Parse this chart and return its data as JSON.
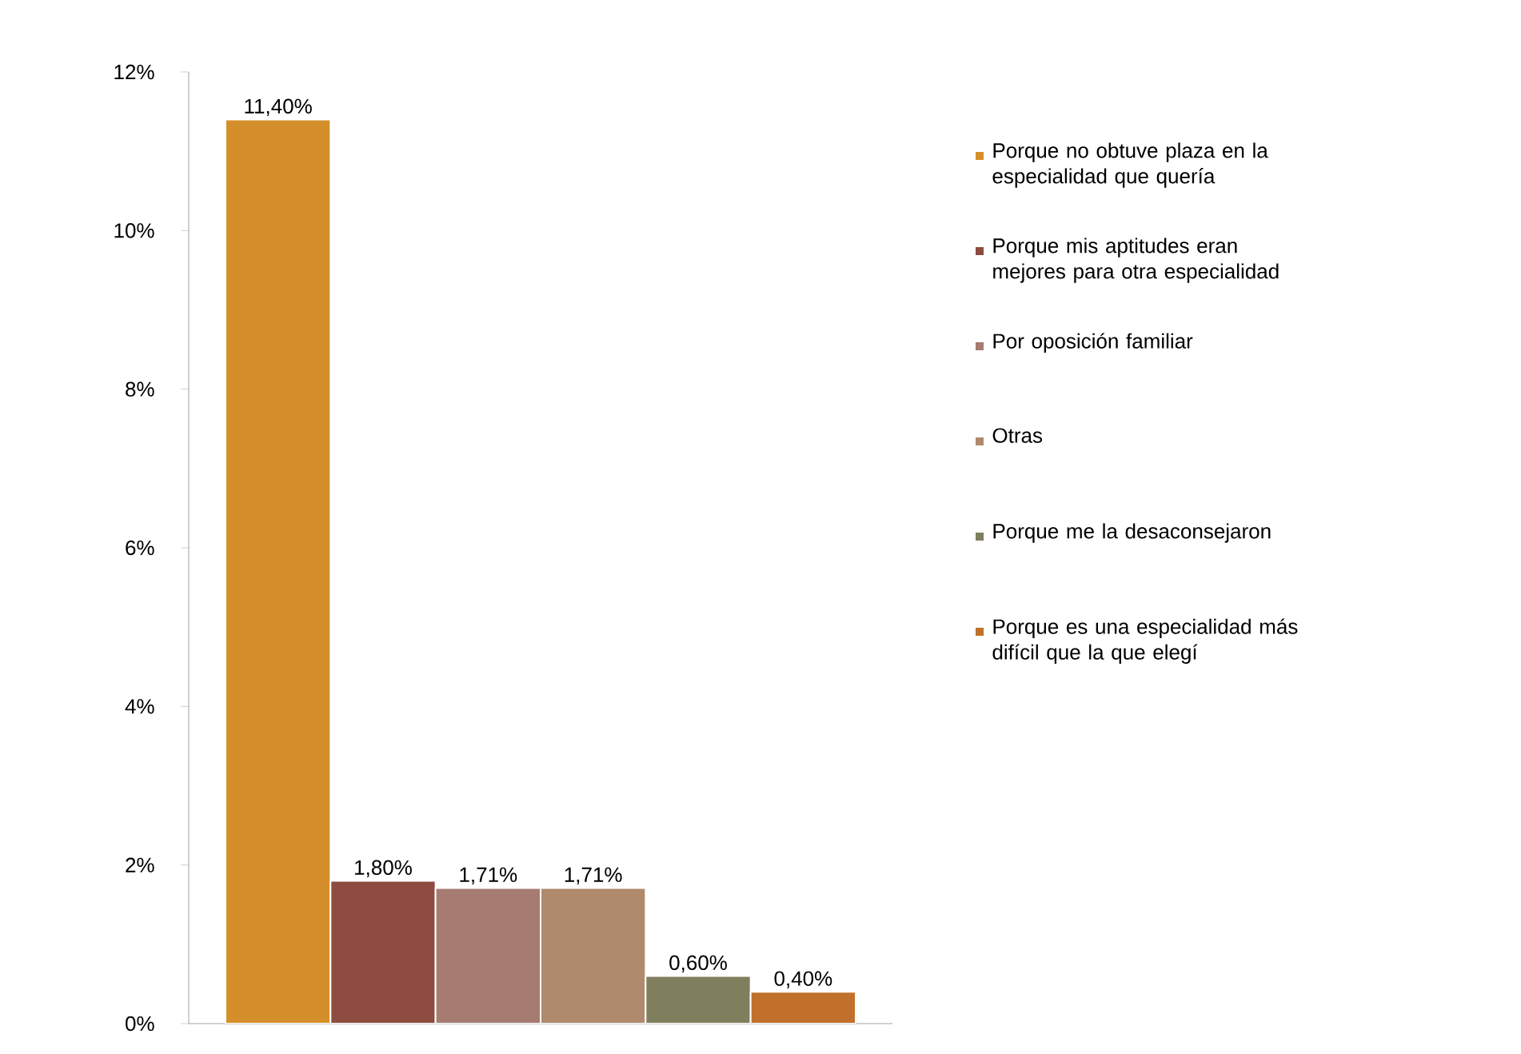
{
  "chart_data": {
    "type": "bar",
    "categories": [
      null
    ],
    "series": [
      {
        "name": "Porque no obtuve plaza en la especialidad que quería",
        "color": "#d58f2a",
        "values": [
          11.4
        ],
        "value_labels": [
          "11,40%"
        ]
      },
      {
        "name": "Porque mis aptitudes eran mejores para otra especialidad",
        "color": "#8e4b3f",
        "values": [
          1.8
        ],
        "value_labels": [
          "1,80%"
        ]
      },
      {
        "name": "Por oposición familiar",
        "color": "#a57b72",
        "values": [
          1.71
        ],
        "value_labels": [
          "1,71%"
        ]
      },
      {
        "name": "Otras",
        "color": "#b08a6c",
        "values": [
          1.71
        ],
        "value_labels": [
          "1,71%"
        ]
      },
      {
        "name": "Porque me la desaconsejaron",
        "color": "#7f7f5e",
        "values": [
          0.6
        ],
        "value_labels": [
          "0,60%"
        ]
      },
      {
        "name": "Porque es una especialidad más difícil que la que elegí",
        "color": "#c0702a",
        "values": [
          0.4
        ],
        "value_labels": [
          "0,40%"
        ]
      }
    ],
    "ylim": [
      0,
      12
    ],
    "yticks": [
      {
        "value": 0,
        "label": "0%"
      },
      {
        "value": 2,
        "label": "2%"
      },
      {
        "value": 4,
        "label": "4%"
      },
      {
        "value": 6,
        "label": "6%"
      },
      {
        "value": 8,
        "label": "8%"
      },
      {
        "value": 10,
        "label": "10%"
      },
      {
        "value": 12,
        "label": "12%"
      }
    ],
    "legend": "right",
    "grid": false
  }
}
